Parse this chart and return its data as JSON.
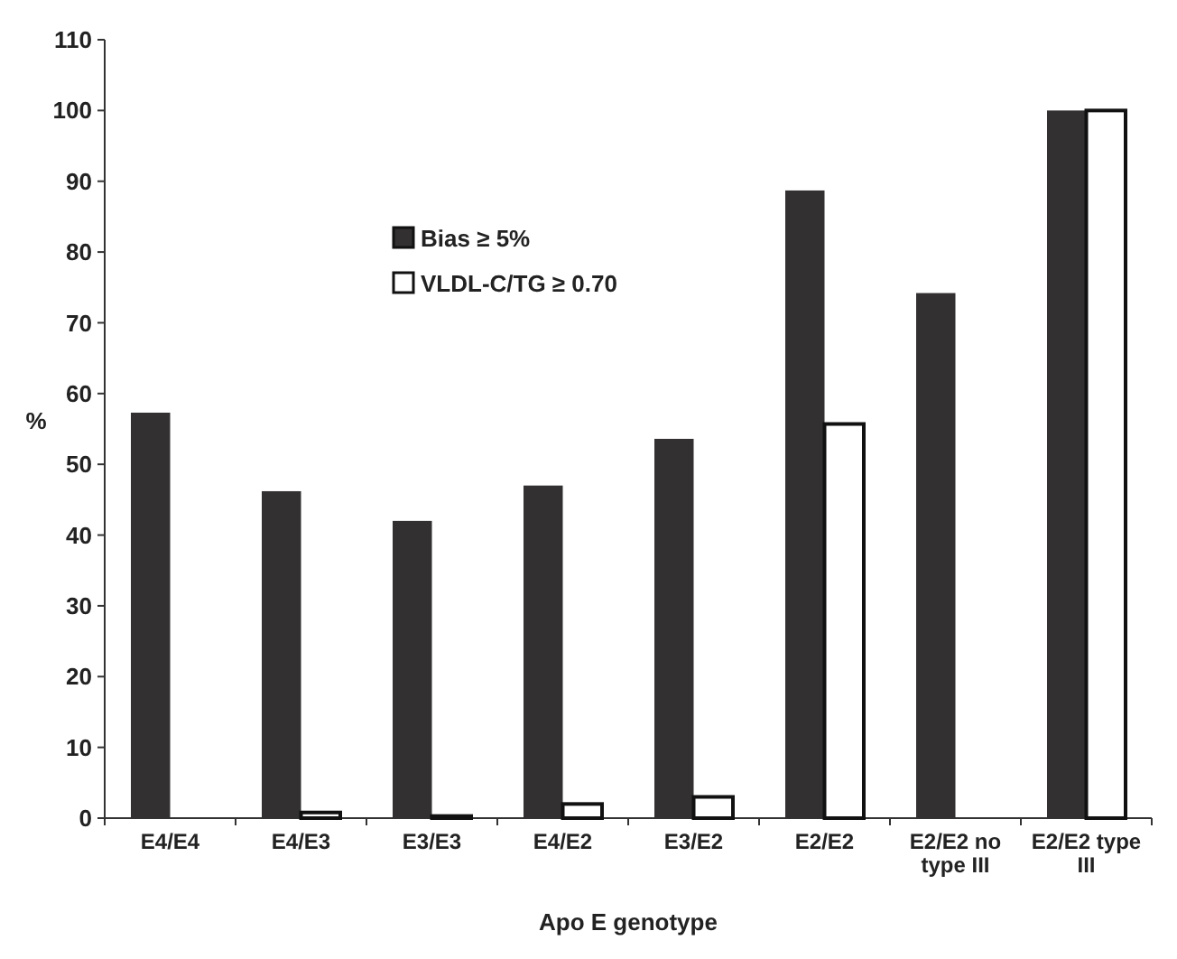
{
  "chart_data": {
    "type": "bar",
    "xlabel": "Apo E genotype",
    "ylabel": "%",
    "categories": [
      "E4/E4",
      "E4/E3",
      "E3/E3",
      "E4/E2",
      "E3/E2",
      "E2/E2",
      "E2/E2 no type III",
      "E2/E2 type III"
    ],
    "series": [
      {
        "name": "Bias ≥ 5%",
        "color": "#323031",
        "values": [
          57.3,
          46.2,
          42,
          47,
          53.6,
          88.7,
          74.2,
          100
        ]
      },
      {
        "name": "VLDL-C/TG ≥ 0.70",
        "color": "#ffffff",
        "values": [
          0,
          0.8,
          0.3,
          2,
          3,
          55.7,
          0,
          100
        ]
      }
    ],
    "ylim": [
      0,
      110
    ],
    "yticks": [
      0,
      10,
      20,
      30,
      40,
      50,
      60,
      70,
      80,
      90,
      100,
      110
    ],
    "grid": false,
    "legend": "top left"
  }
}
